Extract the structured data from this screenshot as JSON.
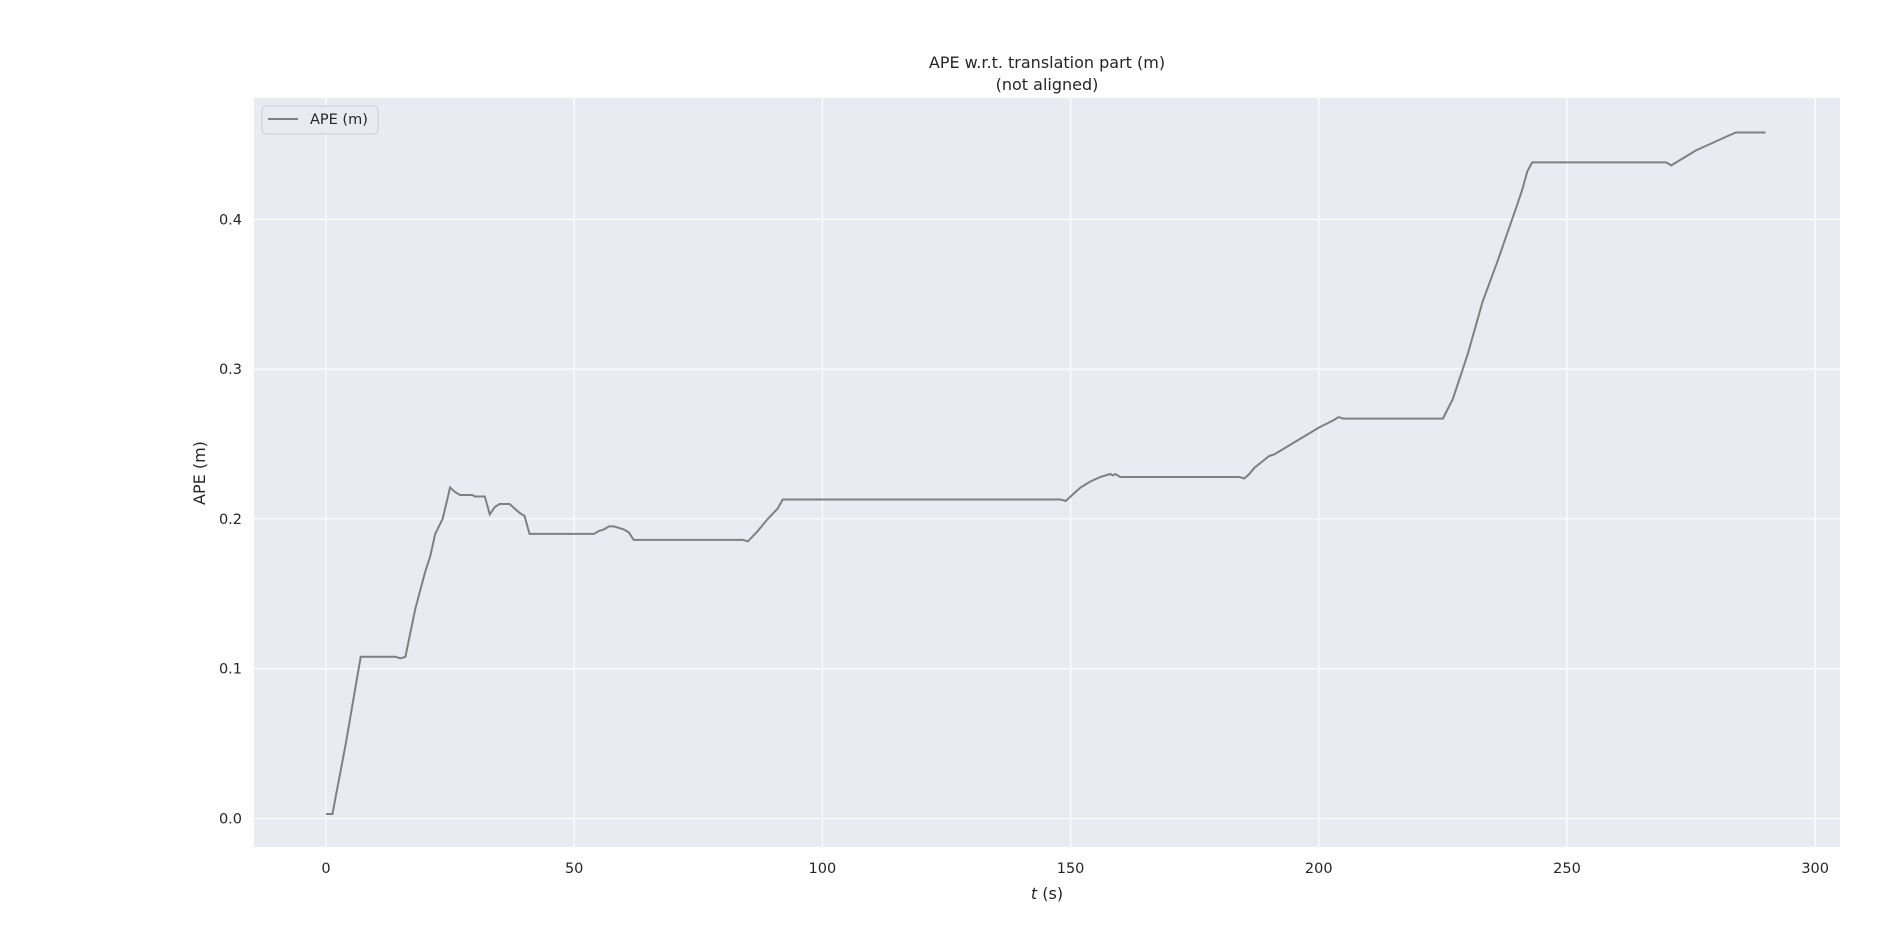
{
  "chart_data": {
    "type": "line",
    "title": "APE w.r.t. translation part (m)",
    "subtitle": "(not aligned)",
    "xlabel_italic": "t",
    "xlabel_rest": " (s)",
    "ylabel": "APE (m)",
    "xlim": [
      -14.5,
      305
    ],
    "ylim": [
      -0.019,
      0.481
    ],
    "x_ticks": [
      0,
      50,
      100,
      150,
      200,
      250,
      300
    ],
    "y_ticks": [
      0.0,
      0.1,
      0.2,
      0.3,
      0.4
    ],
    "y_tick_labels": [
      "0.0",
      "0.1",
      "0.2",
      "0.3",
      "0.4"
    ],
    "grid": true,
    "legend_position": "upper-left",
    "colors": {
      "background": "#eaeaf2",
      "grid": "#ffffff",
      "line": "#808080",
      "text": "#262626"
    },
    "series": [
      {
        "name": "APE (m)",
        "x": [
          0,
          1.3,
          4,
          7,
          7.5,
          10,
          12,
          14,
          15,
          16,
          18,
          20,
          21,
          22,
          23.5,
          24,
          25,
          26,
          27,
          28,
          29,
          29.5,
          30,
          31,
          32,
          33,
          34,
          35,
          36,
          37,
          38,
          39,
          40,
          41,
          42,
          45,
          50,
          53,
          54,
          55,
          56,
          57,
          58,
          59,
          60,
          61,
          62,
          64,
          70,
          75,
          80,
          84,
          85,
          87,
          89,
          91,
          92,
          93,
          100,
          110,
          120,
          130,
          140,
          148,
          149,
          150,
          151,
          152,
          153,
          154,
          156,
          158,
          158.5,
          159,
          160,
          161,
          163,
          170,
          180,
          184,
          185,
          186,
          187,
          190,
          191,
          192,
          195,
          198,
          200,
          203,
          204,
          205,
          208,
          210,
          215,
          220,
          225,
          227,
          230,
          233,
          236,
          240,
          241,
          242,
          243,
          250,
          260,
          270,
          271,
          272,
          274,
          275,
          276,
          278,
          280,
          282,
          284,
          285,
          288,
          290
        ],
        "y": [
          0.003,
          0.003,
          0.05,
          0.108,
          0.108,
          0.108,
          0.108,
          0.108,
          0.107,
          0.108,
          0.14,
          0.165,
          0.175,
          0.19,
          0.2,
          0.207,
          0.221,
          0.218,
          0.216,
          0.216,
          0.216,
          0.216,
          0.215,
          0.215,
          0.215,
          0.203,
          0.208,
          0.21,
          0.21,
          0.21,
          0.207,
          0.204,
          0.202,
          0.19,
          0.19,
          0.19,
          0.19,
          0.19,
          0.19,
          0.192,
          0.193,
          0.195,
          0.195,
          0.194,
          0.193,
          0.191,
          0.186,
          0.186,
          0.186,
          0.186,
          0.186,
          0.186,
          0.185,
          0.192,
          0.2,
          0.207,
          0.213,
          0.213,
          0.213,
          0.213,
          0.213,
          0.213,
          0.213,
          0.213,
          0.212,
          0.215,
          0.218,
          0.221,
          0.223,
          0.225,
          0.228,
          0.23,
          0.229,
          0.23,
          0.228,
          0.228,
          0.228,
          0.228,
          0.228,
          0.228,
          0.227,
          0.23,
          0.234,
          0.242,
          0.243,
          0.245,
          0.251,
          0.257,
          0.261,
          0.266,
          0.268,
          0.267,
          0.267,
          0.267,
          0.267,
          0.267,
          0.267,
          0.28,
          0.31,
          0.345,
          0.372,
          0.41,
          0.42,
          0.432,
          0.438,
          0.438,
          0.438,
          0.438,
          0.436,
          0.438,
          0.442,
          0.444,
          0.446,
          0.449,
          0.452,
          0.455,
          0.458,
          0.458,
          0.458,
          0.458
        ]
      }
    ]
  }
}
